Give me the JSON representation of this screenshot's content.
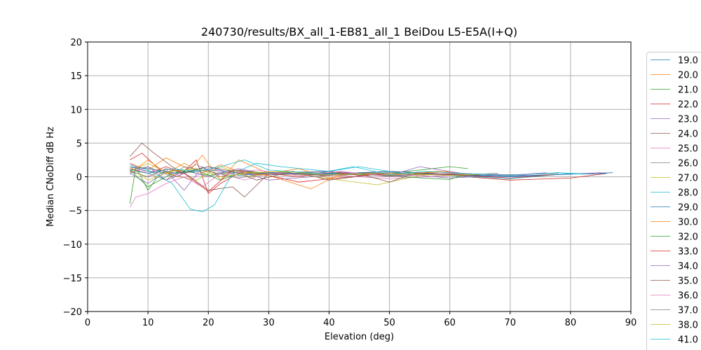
{
  "chart_data": {
    "type": "line",
    "title": "240730/results/BX_all_1-EB81_all_1 BeiDou L5-E5A(I+Q)",
    "xlabel": "Elevation (deg)",
    "ylabel": "Median CNoDiff dB Hz",
    "xlim": [
      0,
      90
    ],
    "ylim": [
      -20,
      20
    ],
    "xticks": [
      0,
      10,
      20,
      30,
      40,
      50,
      60,
      70,
      80,
      90
    ],
    "yticks": [
      -20,
      -15,
      -10,
      -5,
      0,
      5,
      10,
      15,
      20
    ],
    "grid": true,
    "legend_position": "right, outside plot area (cut off)",
    "series": [
      {
        "name": "19.0",
        "color": "#1f77b4",
        "x": [
          7,
          10,
          15,
          20,
          25,
          30,
          40,
          50,
          60,
          70,
          80,
          87
        ],
        "y": [
          1.5,
          0.8,
          0.5,
          1.0,
          0.6,
          0.3,
          0.5,
          0.2,
          0.4,
          0.1,
          0.4,
          0.6
        ]
      },
      {
        "name": "20.0",
        "color": "#ff7f0e",
        "x": [
          7,
          10,
          13,
          17,
          19,
          22,
          25,
          30,
          35,
          40,
          45,
          50,
          55,
          60
        ],
        "y": [
          2.0,
          1.0,
          2.8,
          1.0,
          3.2,
          -0.5,
          2.5,
          0.5,
          1.2,
          -0.2,
          0.6,
          0.3,
          0.5,
          0.8
        ]
      },
      {
        "name": "21.0",
        "color": "#2ca02c",
        "x": [
          7,
          8,
          10,
          12,
          15,
          20,
          25,
          30,
          40,
          50,
          60,
          63
        ],
        "y": [
          -4.0,
          1.5,
          -2.0,
          0.5,
          1.0,
          0.2,
          0.8,
          0.5,
          0.2,
          0.5,
          1.5,
          1.2
        ]
      },
      {
        "name": "22.0",
        "color": "#d62728",
        "x": [
          7,
          9,
          12,
          15,
          18,
          20,
          22,
          25,
          30,
          35,
          40,
          50,
          60,
          70,
          80,
          86
        ],
        "y": [
          2.5,
          3.5,
          1.0,
          0.0,
          2.5,
          -2.5,
          -1.0,
          0.5,
          0.2,
          -0.8,
          -0.3,
          0.5,
          0.2,
          -0.5,
          -0.2,
          0.5
        ]
      },
      {
        "name": "23.0",
        "color": "#9467bd",
        "x": [
          7,
          10,
          13,
          16,
          19,
          22,
          25,
          30,
          40,
          50,
          60,
          70,
          75
        ],
        "y": [
          0.5,
          -1.0,
          0.8,
          -2.0,
          1.5,
          0.0,
          0.8,
          -0.5,
          0.2,
          0.6,
          -0.2,
          0.3,
          0.1
        ]
      },
      {
        "name": "24.0",
        "color": "#8c564b",
        "x": [
          7,
          9,
          11,
          14,
          17,
          20,
          24,
          26,
          30,
          40,
          50,
          60,
          65
        ],
        "y": [
          3.0,
          5.0,
          3.5,
          1.5,
          0.0,
          -2.0,
          -1.5,
          -3.0,
          0.5,
          0.2,
          0.8,
          0.4,
          0.2
        ]
      },
      {
        "name": "25.0",
        "color": "#e377c2",
        "x": [
          7,
          8,
          10,
          13,
          16,
          19,
          22,
          26,
          30,
          40,
          50,
          60,
          70,
          80,
          85
        ],
        "y": [
          -4.5,
          -3.0,
          -2.5,
          -1.0,
          0.0,
          -1.5,
          0.5,
          -0.5,
          0.5,
          0.3,
          -0.3,
          0.2,
          0.0,
          0.4,
          0.6
        ]
      },
      {
        "name": "26.0",
        "color": "#7f7f7f",
        "x": [
          7,
          10,
          13,
          16,
          20,
          25,
          30,
          40,
          50,
          60,
          70,
          78
        ],
        "y": [
          1.2,
          0.5,
          -0.5,
          1.5,
          0.8,
          -0.2,
          0.6,
          0.8,
          0.1,
          0.5,
          0.3,
          0.5
        ]
      },
      {
        "name": "27.0",
        "color": "#bcbd22",
        "x": [
          7,
          10,
          14,
          18,
          22,
          27,
          32,
          40,
          48,
          55,
          60,
          64
        ],
        "y": [
          0.8,
          2.0,
          0.2,
          -0.5,
          1.5,
          0.0,
          0.8,
          -0.3,
          -1.2,
          0.2,
          0.5,
          0.3
        ]
      },
      {
        "name": "28.0",
        "color": "#17becf",
        "x": [
          7,
          10,
          14,
          17,
          19,
          21,
          24,
          28,
          32,
          40,
          45,
          52,
          60,
          70,
          80,
          84
        ],
        "y": [
          1.8,
          1.0,
          -1.0,
          -4.8,
          -5.2,
          -4.2,
          0.5,
          2.0,
          1.5,
          0.8,
          1.5,
          0.5,
          0.2,
          -0.3,
          0.5,
          0.4
        ]
      },
      {
        "name": "29.0",
        "color": "#1f77b4",
        "x": [
          7,
          10,
          15,
          20,
          25,
          30,
          40,
          50,
          60,
          70,
          80,
          86
        ],
        "y": [
          1.5,
          1.2,
          0.5,
          1.5,
          0.2,
          0.6,
          0.4,
          0.8,
          0.3,
          0.0,
          0.4,
          0.5
        ]
      },
      {
        "name": "30.0",
        "color": "#ff7f0e",
        "x": [
          7,
          10,
          13,
          16,
          19,
          22,
          25,
          30,
          37,
          42,
          50,
          58,
          64
        ],
        "y": [
          0.5,
          2.5,
          0.5,
          2.0,
          0.5,
          1.8,
          0.8,
          0.2,
          -1.8,
          0.5,
          0.2,
          0.8,
          0.4
        ]
      },
      {
        "name": "32.0",
        "color": "#2ca02c",
        "x": [
          7,
          10,
          14,
          18,
          22,
          26,
          30,
          40,
          50,
          60,
          62
        ],
        "y": [
          1.0,
          -1.5,
          0.5,
          1.0,
          -0.5,
          0.8,
          0.3,
          0.6,
          0.1,
          -0.4,
          0.2
        ]
      },
      {
        "name": "33.0",
        "color": "#d62728",
        "x": [
          7,
          10,
          13,
          16,
          20,
          24,
          30,
          35,
          40,
          45,
          50,
          60,
          70,
          77
        ],
        "y": [
          1.2,
          0.5,
          1.5,
          0.5,
          -2.2,
          1.0,
          0.5,
          0.0,
          0.8,
          0.2,
          0.5,
          0.3,
          -0.2,
          0.3
        ]
      },
      {
        "name": "34.0",
        "color": "#9467bd",
        "x": [
          7,
          10,
          13,
          17,
          20,
          25,
          30,
          40,
          50,
          55,
          62,
          70,
          76
        ],
        "y": [
          0.5,
          1.5,
          -0.5,
          0.8,
          0.0,
          1.2,
          0.3,
          0.8,
          0.2,
          1.5,
          0.5,
          0.2,
          0.6
        ]
      },
      {
        "name": "35.0",
        "color": "#8c564b",
        "x": [
          7,
          10,
          13,
          16,
          20,
          24,
          28,
          34,
          40,
          46,
          50,
          54,
          60
        ],
        "y": [
          0.8,
          0.0,
          1.2,
          0.5,
          1.5,
          0.8,
          -0.5,
          0.8,
          -0.5,
          0.2,
          -0.8,
          0.5,
          0.3
        ]
      },
      {
        "name": "36.0",
        "color": "#e377c2",
        "x": [
          7,
          10,
          13,
          17,
          20,
          24,
          28,
          35,
          42,
          50,
          60,
          70,
          74
        ],
        "y": [
          2.0,
          0.5,
          1.0,
          -0.5,
          1.2,
          0.5,
          1.0,
          0.2,
          0.8,
          0.0,
          0.5,
          0.2,
          0.4
        ]
      },
      {
        "name": "37.0",
        "color": "#7f7f7f",
        "x": [
          7,
          10,
          14,
          18,
          21,
          25,
          30,
          40,
          50,
          60,
          68
        ],
        "y": [
          1.0,
          1.5,
          0.0,
          1.8,
          0.5,
          1.0,
          0.5,
          0.3,
          0.6,
          0.2,
          0.5
        ]
      },
      {
        "name": "38.0",
        "color": "#bcbd22",
        "x": [
          7,
          10,
          14,
          18,
          22,
          27,
          32,
          40,
          50,
          60,
          66
        ],
        "y": [
          1.5,
          -0.5,
          0.8,
          1.2,
          0.0,
          0.6,
          0.8,
          0.3,
          0.5,
          0.2,
          0.4
        ]
      },
      {
        "name": "41.0",
        "color": "#17becf",
        "x": [
          7,
          10,
          14,
          18,
          22,
          26,
          30,
          38,
          44,
          50,
          56,
          62,
          70,
          78,
          82
        ],
        "y": [
          1.0,
          0.5,
          1.2,
          0.8,
          1.5,
          2.5,
          1.0,
          0.5,
          1.5,
          0.3,
          0.8,
          0.5,
          0.2,
          0.6,
          0.4
        ]
      }
    ]
  }
}
